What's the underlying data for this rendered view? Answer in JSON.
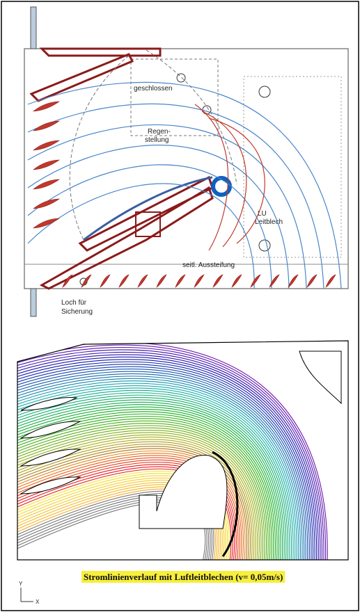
{
  "top_diagram": {
    "closed": "geschlossen",
    "rain_position": [
      "Regen-",
      "stellung"
    ],
    "guide_plate": [
      "LU",
      "Leitblech"
    ],
    "side_stiffener": "seitl. Aussteifung",
    "hole": [
      "Loch für",
      "Sicherung"
    ]
  },
  "bottom_plot": {
    "caption": "Stromlinienverlauf mit Luftleitblechen (v= 0,05m/s)",
    "axis_y": "Y",
    "axis_x": "X"
  }
}
